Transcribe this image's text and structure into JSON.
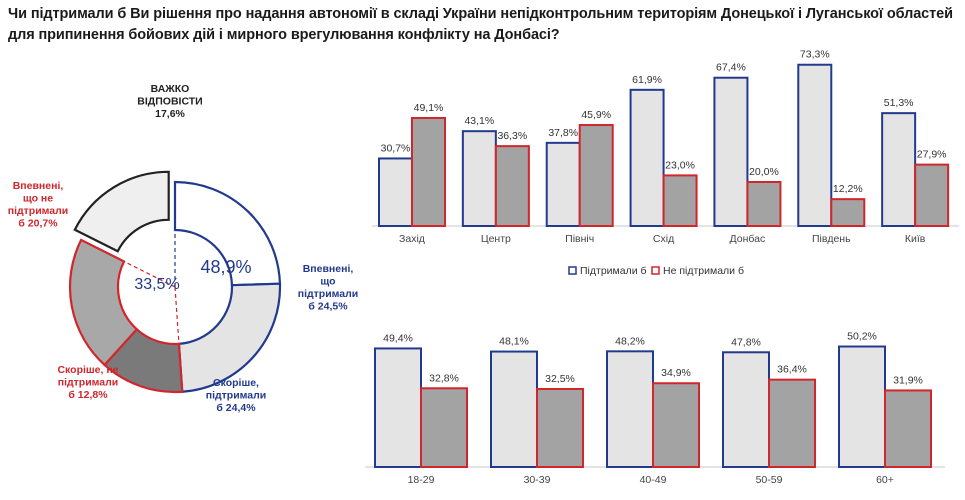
{
  "title": "Чи підтримали б Ви рішення про надання автономії в складі України непідконтрольним територіям Донецької і Луганської областей для припинення бойових дій і мирного врегулювання конфлікту на Донбасі?",
  "colors": {
    "support": "#223a8e",
    "nosupport": "#d0262c",
    "bar_support_fill": "#e4e4e4",
    "bar_nosupport_fill": "#a3a3a3"
  },
  "chart_data": [
    {
      "type": "pie",
      "variant": "donut-exploded",
      "slices": [
        {
          "label": "Впевнені, що підтримали б",
          "value": 24.5,
          "label_text": "Впевнені,|що|підтримали|б 24,5%",
          "color": "#223a8e"
        },
        {
          "label": "Скоріше, підтримали б",
          "value": 24.4,
          "label_text": "Скоріше,|підтримали|б 24,4%",
          "color": "#223a8e"
        },
        {
          "label": "Скоріше, не підтримали б",
          "value": 12.8,
          "label_text": "Скоріше, не|підтримали|б 12,8%",
          "color": "#d0262c"
        },
        {
          "label": "Впевнені, що не підтримали б",
          "value": 20.7,
          "label_text": "Впевнені,|що не|підтримали|б  20,7%",
          "color": "#d0262c"
        },
        {
          "label": "Важко відповісти",
          "value": 17.6,
          "label_text": "ВАЖКО|ВІДПОВІСТИ|17,6%",
          "color": "#222222"
        }
      ],
      "inner_labels": {
        "support_total": "48,9%",
        "nosupport_total": "33,5%"
      }
    },
    {
      "type": "bar",
      "categories": [
        "Захід",
        "Центр",
        "Північ",
        "Схід",
        "Донбас",
        "Південь",
        "Київ"
      ],
      "series": [
        {
          "name": "Підтримали б",
          "values": [
            30.7,
            43.1,
            37.8,
            61.9,
            67.4,
            73.3,
            51.3
          ],
          "labels": [
            "30,7%",
            "43,1%",
            "37,8%",
            "61,9%",
            "67,4%",
            "73,3%",
            "51,3%"
          ]
        },
        {
          "name": "Не підтримали б",
          "values": [
            49.1,
            36.3,
            45.9,
            23.0,
            20.0,
            12.2,
            27.9
          ],
          "labels": [
            "49,1%",
            "36,3%",
            "45,9%",
            "23,0%",
            "20,0%",
            "12,2%",
            "27,9%"
          ]
        }
      ],
      "ylim": [
        0,
        80
      ],
      "legend": "bottom"
    },
    {
      "type": "bar",
      "categories": [
        "18-29",
        "30-39",
        "40-49",
        "50-59",
        "60+"
      ],
      "series": [
        {
          "name": "Підтримали б",
          "values": [
            49.4,
            48.1,
            48.2,
            47.8,
            50.2
          ],
          "labels": [
            "49,4%",
            "48,1%",
            "48,2%",
            "47,8%",
            "50,2%"
          ]
        },
        {
          "name": "Не підтримали б",
          "values": [
            32.8,
            32.5,
            34.9,
            36.4,
            31.9
          ],
          "labels": [
            "32,8%",
            "32,5%",
            "34,9%",
            "36,4%",
            "31,9%"
          ]
        }
      ],
      "ylim": [
        0,
        60
      ]
    }
  ]
}
